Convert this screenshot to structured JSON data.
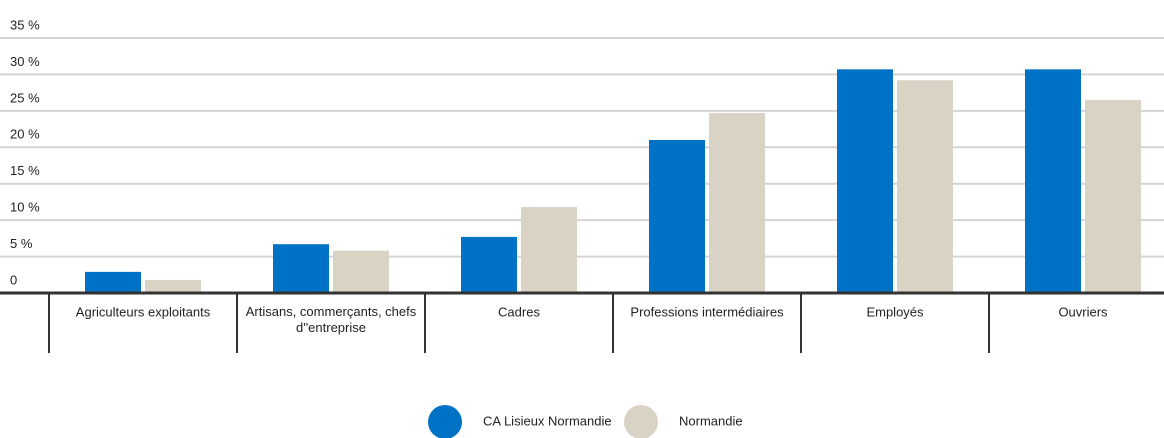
{
  "chart_data": {
    "type": "bar",
    "categories": [
      "Agriculteurs exploitants",
      "Artisans, commerçants, chefs d''entreprise",
      "Cadres",
      "Professions intermédiaires",
      "Employés",
      "Ouvriers"
    ],
    "series": [
      {
        "name": "CA Lisieux Normandie",
        "color": "#0072c6",
        "values": [
          2.9,
          6.7,
          7.7,
          21,
          30.7,
          30.7
        ]
      },
      {
        "name": "Normandie",
        "color": "#d9d3c6",
        "values": [
          1.8,
          5.8,
          11.8,
          24.7,
          29.2,
          26.5
        ]
      }
    ],
    "ylim": [
      0,
      35
    ],
    "yticks": [
      0,
      {
        "value": 5,
        "label": "5 %"
      },
      {
        "value": 10,
        "label": "10 %"
      },
      {
        "value": 15,
        "label": "15 %"
      },
      {
        "value": 20,
        "label": "20 %"
      },
      {
        "value": 25,
        "label": "25 %"
      },
      {
        "value": 30,
        "label": "30 %"
      },
      {
        "value": 35,
        "label": "35 %"
      }
    ],
    "grid": true,
    "legend": "bottom"
  }
}
